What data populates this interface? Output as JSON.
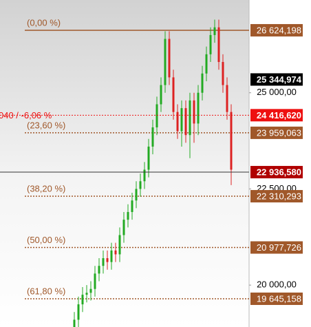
{
  "chart_data": {
    "type": "ohlc",
    "ylim": [
      18911,
      27411
    ],
    "yticks": [
      {
        "value": 25000,
        "label": "25 000,00"
      },
      {
        "value": 22500,
        "label": "22 500,00"
      },
      {
        "value": 20000,
        "label": "20 000,00"
      }
    ],
    "up_color": "#22aa22",
    "down_color": "#dd2222",
    "open": [
      18900,
      19100,
      19500,
      19750,
      19800,
      19900,
      20300,
      20500,
      20700,
      20600,
      20900,
      20800,
      21300,
      21700,
      21900,
      22200,
      22500,
      22700,
      23000,
      23600,
      24100,
      24700,
      25200,
      26400,
      25400,
      24500,
      24000,
      24600,
      23900,
      24800,
      24200,
      25000,
      25500,
      26000,
      26500,
      26700,
      25800,
      25200,
      24500
    ],
    "high": [
      19300,
      19700,
      19950,
      20000,
      20100,
      20500,
      20700,
      20900,
      20900,
      21100,
      21100,
      21500,
      21900,
      22100,
      22400,
      22700,
      22900,
      23200,
      23800,
      24300,
      24900,
      25400,
      26600,
      26600,
      25600,
      24700,
      24800,
      24800,
      25000,
      25000,
      25200,
      25700,
      26200,
      26700,
      26900,
      26900,
      26000,
      25400,
      24700
    ],
    "low": [
      18700,
      18900,
      19300,
      19550,
      19600,
      19700,
      20100,
      20300,
      20400,
      20400,
      20600,
      20600,
      21100,
      21500,
      21700,
      22000,
      22300,
      22500,
      22800,
      23400,
      23900,
      24500,
      25000,
      25200,
      24300,
      23800,
      23600,
      23700,
      23300,
      23700,
      23900,
      24800,
      25300,
      25800,
      26300,
      25600,
      25000,
      24300,
      22600
    ],
    "close": [
      19100,
      19500,
      19750,
      19800,
      19900,
      20300,
      20500,
      20700,
      20600,
      20900,
      20800,
      21300,
      21700,
      21900,
      22200,
      22500,
      22700,
      23000,
      23600,
      24100,
      24700,
      25200,
      26400,
      25400,
      24500,
      24000,
      24600,
      23900,
      24800,
      24200,
      25000,
      25500,
      26000,
      26500,
      26700,
      25800,
      25200,
      24500,
      23000
    ],
    "fib_color": "#a0582a",
    "fib_levels": [
      {
        "name": "(0,00 %)",
        "value": 26624.198,
        "value_label": "26 624,198"
      },
      {
        "name": "(23,60 %)",
        "value": 23959.063,
        "value_label": "23 959,063"
      },
      {
        "name": "(38,20 %)",
        "value": 22310.293,
        "value_label": "22 310,293"
      },
      {
        "name": "(50,00 %)",
        "value": 20977.726,
        "value_label": "20 977,726"
      },
      {
        "name": "(61,80 %)",
        "value": 19645.158,
        "value_label": "19 645,158"
      }
    ],
    "high_marker": {
      "value": 25344.974,
      "value_label": "25 344,974",
      "color": "#000000"
    },
    "current": {
      "value": 24416.62,
      "value_label": "24 416,620",
      "text": "040 / -6,06 %",
      "color": "#ee1111"
    },
    "last_price": {
      "value": 22936.58,
      "value_label": "22 936,580",
      "color": "#b00000"
    }
  }
}
